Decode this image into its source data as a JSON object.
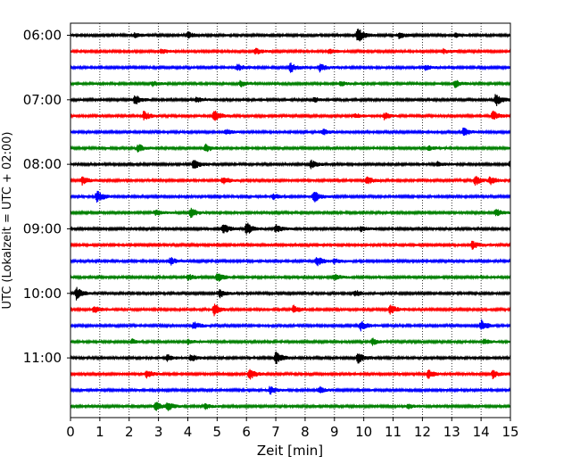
{
  "chart_data": {
    "type": "line",
    "title": "",
    "xlabel": "Zeit  [min]",
    "ylabel": "UTC (Lokalzeit = UTC + 02:00)",
    "xlim": [
      0,
      15
    ],
    "x_ticks": [
      "0",
      "1",
      "2",
      "3",
      "4",
      "5",
      "6",
      "7",
      "8",
      "9",
      "10",
      "11",
      "12",
      "13",
      "14",
      "15"
    ],
    "y_ticks": [
      "06:00",
      "07:00",
      "08:00",
      "09:00",
      "10:00",
      "11:00"
    ],
    "grid": "vertical dotted lines at each minute",
    "trace_interval_minutes": 15,
    "colors": [
      "#000000",
      "#ff0000",
      "#0000ff",
      "#008000"
    ],
    "series": [
      {
        "start": "06:00",
        "color": "#000000",
        "events": [
          [
            2.2,
            0.3
          ],
          [
            4.0,
            0.4
          ],
          [
            9.8,
            0.9
          ],
          [
            11.2,
            0.4
          ],
          [
            13.1,
            0.3
          ]
        ]
      },
      {
        "start": "06:15",
        "color": "#ff0000",
        "events": [
          [
            3.1,
            0.3
          ],
          [
            6.3,
            0.4
          ],
          [
            8.8,
            0.3
          ],
          [
            12.7,
            0.3
          ]
        ]
      },
      {
        "start": "06:30",
        "color": "#0000ff",
        "events": [
          [
            5.7,
            0.4
          ],
          [
            7.5,
            0.6
          ],
          [
            8.5,
            0.5
          ],
          [
            12.1,
            0.3
          ]
        ]
      },
      {
        "start": "06:45",
        "color": "#008000",
        "events": [
          [
            2.8,
            0.3
          ],
          [
            5.8,
            0.4
          ],
          [
            9.2,
            0.3
          ],
          [
            13.1,
            0.5
          ]
        ]
      },
      {
        "start": "07:00",
        "color": "#000000",
        "events": [
          [
            2.2,
            0.6
          ],
          [
            4.3,
            0.4
          ],
          [
            8.3,
            0.3
          ],
          [
            14.5,
            0.8
          ]
        ]
      },
      {
        "start": "07:15",
        "color": "#ff0000",
        "events": [
          [
            2.5,
            0.6
          ],
          [
            4.9,
            0.8
          ],
          [
            9.7,
            0.3
          ],
          [
            10.7,
            0.4
          ],
          [
            14.4,
            0.6
          ]
        ]
      },
      {
        "start": "07:30",
        "color": "#0000ff",
        "events": [
          [
            5.3,
            0.3
          ],
          [
            8.6,
            0.4
          ],
          [
            13.4,
            0.5
          ]
        ]
      },
      {
        "start": "07:45",
        "color": "#008000",
        "events": [
          [
            2.3,
            0.5
          ],
          [
            4.6,
            0.5
          ],
          [
            12.2,
            0.3
          ]
        ]
      },
      {
        "start": "08:00",
        "color": "#000000",
        "events": [
          [
            4.2,
            0.6
          ],
          [
            8.2,
            0.5
          ],
          [
            12.5,
            0.3
          ],
          [
            15.0,
            0.5
          ]
        ]
      },
      {
        "start": "08:15",
        "color": "#ff0000",
        "events": [
          [
            0.4,
            0.5
          ],
          [
            5.2,
            0.5
          ],
          [
            10.1,
            0.5
          ],
          [
            13.8,
            0.6
          ],
          [
            14.3,
            0.5
          ]
        ]
      },
      {
        "start": "08:30",
        "color": "#0000ff",
        "events": [
          [
            0.9,
            0.8
          ],
          [
            6.9,
            0.4
          ],
          [
            8.3,
            0.7
          ]
        ]
      },
      {
        "start": "08:45",
        "color": "#008000",
        "events": [
          [
            2.9,
            0.4
          ],
          [
            4.1,
            0.6
          ],
          [
            14.5,
            0.5
          ]
        ]
      },
      {
        "start": "09:00",
        "color": "#000000",
        "events": [
          [
            5.2,
            0.7
          ],
          [
            6.0,
            0.9
          ],
          [
            7.0,
            0.5
          ],
          [
            9.9,
            0.3
          ]
        ]
      },
      {
        "start": "09:15",
        "color": "#ff0000",
        "events": [
          [
            13.7,
            0.5
          ]
        ]
      },
      {
        "start": "09:30",
        "color": "#0000ff",
        "events": [
          [
            3.4,
            0.5
          ],
          [
            8.4,
            0.6
          ],
          [
            9.0,
            0.3
          ]
        ]
      },
      {
        "start": "09:45",
        "color": "#008000",
        "events": [
          [
            4.0,
            0.4
          ],
          [
            5.0,
            0.6
          ],
          [
            9.0,
            0.4
          ]
        ]
      },
      {
        "start": "10:00",
        "color": "#000000",
        "events": [
          [
            0.2,
            0.8
          ],
          [
            5.1,
            0.5
          ],
          [
            9.7,
            0.4
          ]
        ]
      },
      {
        "start": "10:15",
        "color": "#ff0000",
        "events": [
          [
            0.8,
            0.5
          ],
          [
            4.9,
            0.7
          ],
          [
            7.6,
            0.5
          ],
          [
            10.9,
            0.6
          ]
        ]
      },
      {
        "start": "10:30",
        "color": "#0000ff",
        "events": [
          [
            4.2,
            0.5
          ],
          [
            9.9,
            0.6
          ],
          [
            14.0,
            0.7
          ]
        ]
      },
      {
        "start": "10:45",
        "color": "#008000",
        "events": [
          [
            2.1,
            0.3
          ],
          [
            4.0,
            0.3
          ],
          [
            10.3,
            0.4
          ],
          [
            14.1,
            0.3
          ]
        ]
      },
      {
        "start": "11:00",
        "color": "#000000",
        "events": [
          [
            3.3,
            0.4
          ],
          [
            4.1,
            0.5
          ],
          [
            7.0,
            0.8
          ],
          [
            9.8,
            0.7
          ]
        ]
      },
      {
        "start": "11:15",
        "color": "#ff0000",
        "events": [
          [
            2.6,
            0.5
          ],
          [
            6.1,
            0.7
          ],
          [
            12.2,
            0.6
          ],
          [
            14.4,
            0.5
          ]
        ]
      },
      {
        "start": "11:30",
        "color": "#0000ff",
        "events": [
          [
            6.8,
            0.5
          ],
          [
            8.5,
            0.4
          ]
        ]
      },
      {
        "start": "11:45",
        "color": "#008000",
        "events": [
          [
            2.9,
            0.6
          ],
          [
            3.3,
            0.5
          ],
          [
            4.6,
            0.3
          ],
          [
            11.5,
            0.3
          ]
        ]
      }
    ]
  }
}
